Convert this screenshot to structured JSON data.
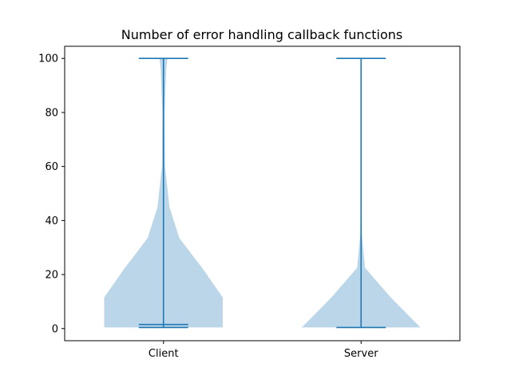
{
  "chart_data": {
    "type": "violin",
    "title": "Number of error handling callback functions",
    "xlabel": "",
    "ylabel": "",
    "categories": [
      "Client",
      "Server"
    ],
    "ylim": [
      -4.5,
      104.5
    ],
    "yticks": [
      0,
      20,
      40,
      60,
      80,
      100
    ],
    "grid": false,
    "colors": {
      "body": "#1f77b4",
      "body_opacity": 0.3,
      "lines": "#1f77b4"
    },
    "violins": [
      {
        "name": "Client",
        "min": 0.4,
        "max": 100,
        "mean": 1.5,
        "profile": [
          {
            "y": 0.4,
            "w": 0.3
          },
          {
            "y": 11.5,
            "w": 0.3
          },
          {
            "y": 22,
            "w": 0.2
          },
          {
            "y": 33.5,
            "w": 0.08
          },
          {
            "y": 45,
            "w": 0.03
          },
          {
            "y": 60,
            "w": 0.008
          },
          {
            "y": 80,
            "w": 0.006
          },
          {
            "y": 96,
            "w": 0.014
          },
          {
            "y": 100,
            "w": 0.02
          }
        ]
      },
      {
        "name": "Server",
        "min": 0.4,
        "max": 100,
        "mean": 0.4,
        "profile": [
          {
            "y": 0.4,
            "w": 0.3
          },
          {
            "y": 11.5,
            "w": 0.15
          },
          {
            "y": 22.5,
            "w": 0.02
          },
          {
            "y": 35,
            "w": 0.004
          },
          {
            "y": 60,
            "w": 0.002
          },
          {
            "y": 100,
            "w": 0.003
          }
        ]
      }
    ]
  }
}
